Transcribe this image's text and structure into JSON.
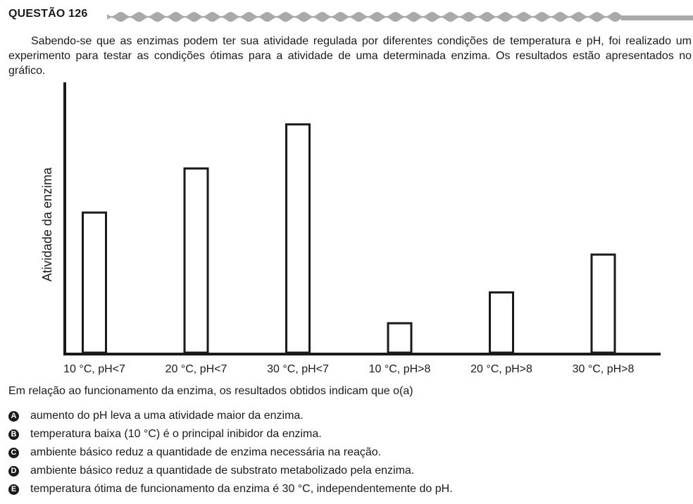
{
  "question": {
    "title": "QUESTÃO 126",
    "intro": "Sabendo-se que as enzimas podem ter sua atividade regulada por diferentes condições de temperatura e pH, foi realizado um experimento para testar as condições ótimas para a atividade de uma determinada enzima. Os resultados estão apresentados no gráfico.",
    "stem": "Em relação ao funcionamento da enzima, os resultados obtidos indicam que o(a)",
    "options": [
      {
        "letter": "A",
        "text": "aumento do pH leva a uma atividade maior da enzima."
      },
      {
        "letter": "B",
        "text": "temperatura baixa (10 °C) é o principal inibidor da enzima."
      },
      {
        "letter": "C",
        "text": "ambiente básico reduz a quantidade de enzima necessária na reação."
      },
      {
        "letter": "D",
        "text": "ambiente básico reduz a quantidade de substrato metabolizado pela enzima."
      },
      {
        "letter": "E",
        "text": "temperatura ótima de funcionamento da enzima é 30 °C, independentemente do pH."
      }
    ]
  },
  "chart_data": {
    "type": "bar",
    "title": "",
    "xlabel": "",
    "ylabel": "Atividade da enzima",
    "categories": [
      "10 °C, pH<7",
      "20 °C, pH<7",
      "30 °C, pH<7",
      "10 °C, pH>8",
      "20 °C, pH>8",
      "30 °C, pH>8"
    ],
    "values": [
      200,
      263,
      326,
      42,
      86,
      140
    ],
    "ylim": [
      0,
      390
    ],
    "grid": false,
    "y_ticks_shown": false,
    "bar_fill": "#ffffff",
    "bar_stroke": "#1a1a1a"
  }
}
